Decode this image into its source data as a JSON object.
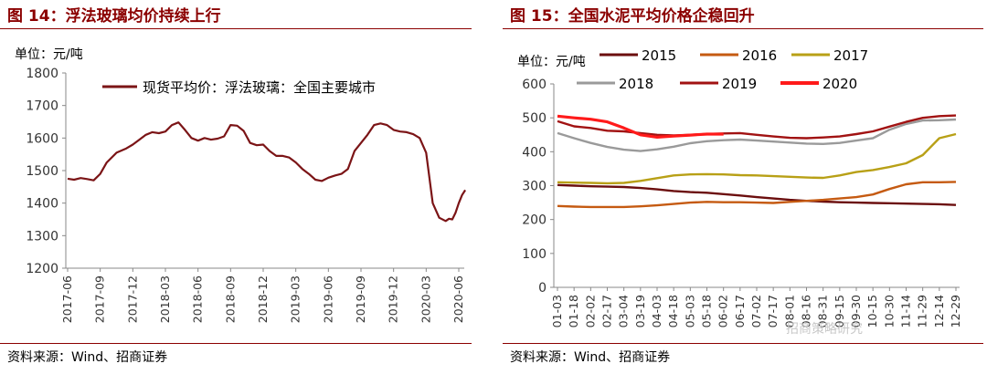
{
  "charts": {
    "left": {
      "title": "图 14：浮法玻璃均价持续上行",
      "unit": "单位：元/吨",
      "source": "资料来源：Wind、招商证券"
    },
    "right": {
      "title": "图 15：全国水泥平均价格企稳回升",
      "unit": "单位：元/吨",
      "source": "资料来源：Wind、招商证券",
      "watermark": "招商策略研究"
    }
  },
  "chart_data": [
    {
      "type": "line",
      "title": "图 14：浮法玻璃均价持续上行",
      "ylabel": "单位：元/吨",
      "ylim": [
        1200,
        1800
      ],
      "yticks": [
        1200,
        1300,
        1400,
        1500,
        1600,
        1700,
        1800
      ],
      "grid": false,
      "legend": "top-right",
      "xticks": [
        "2017-06",
        "2017-09",
        "2017-12",
        "2018-03",
        "2018-06",
        "2018-09",
        "2018-12",
        "2019-03",
        "2019-06",
        "2019-09",
        "2019-12",
        "2020-03",
        "2020-06"
      ],
      "color": "#7b1416",
      "series": [
        {
          "name": "现货平均价：浮法玻璃：全国主要城市",
          "x": [
            0,
            0.2,
            0.4,
            0.6,
            0.8,
            1,
            1.2,
            1.5,
            1.8,
            2,
            2.2,
            2.4,
            2.6,
            2.8,
            3,
            3.2,
            3.4,
            3.6,
            3.8,
            4,
            4.2,
            4.4,
            4.6,
            4.8,
            5,
            5.2,
            5.4,
            5.6,
            5.8,
            6,
            6.2,
            6.4,
            6.6,
            6.8,
            7,
            7.2,
            7.4,
            7.6,
            7.8,
            8,
            8.2,
            8.4,
            8.6,
            8.8,
            9,
            9.2,
            9.4,
            9.6,
            9.8,
            10,
            10.2,
            10.4,
            10.6,
            10.8,
            11,
            11.2,
            11.4,
            11.6,
            11.7,
            11.8,
            11.9,
            12,
            12.1,
            12.2
          ],
          "values": [
            1475,
            1472,
            1477,
            1474,
            1470,
            1490,
            1525,
            1555,
            1568,
            1580,
            1595,
            1610,
            1618,
            1615,
            1620,
            1640,
            1648,
            1625,
            1600,
            1592,
            1600,
            1595,
            1598,
            1605,
            1640,
            1638,
            1622,
            1585,
            1578,
            1580,
            1560,
            1545,
            1545,
            1540,
            1525,
            1505,
            1490,
            1472,
            1468,
            1478,
            1485,
            1490,
            1505,
            1560,
            1585,
            1610,
            1640,
            1645,
            1640,
            1625,
            1620,
            1618,
            1612,
            1600,
            1555,
            1400,
            1355,
            1345,
            1352,
            1350,
            1370,
            1400,
            1425,
            1440
          ]
        }
      ]
    },
    {
      "type": "line",
      "title": "图 15：全国水泥平均价格企稳回升",
      "ylabel": "单位：元/吨",
      "ylim": [
        0,
        600
      ],
      "yticks": [
        0,
        100,
        200,
        300,
        400,
        500,
        600
      ],
      "grid": false,
      "legend": "top",
      "xticks": [
        "01-03",
        "01-18",
        "02-02",
        "02-17",
        "03-04",
        "03-19",
        "04-03",
        "04-18",
        "05-03",
        "05-18",
        "06-02",
        "06-17",
        "07-02",
        "07-17",
        "08-01",
        "08-16",
        "08-31",
        "09-15",
        "09-30",
        "10-15",
        "10-30",
        "11-14",
        "11-29",
        "12-14",
        "12-29"
      ],
      "series": [
        {
          "name": "2015",
          "color": "#6b0e0e",
          "values": [
            302,
            300,
            298,
            297,
            296,
            293,
            289,
            284,
            281,
            279,
            275,
            271,
            266,
            262,
            258,
            255,
            253,
            251,
            250,
            249,
            248,
            247,
            246,
            245,
            243
          ]
        },
        {
          "name": "2016",
          "color": "#c55a11",
          "values": [
            240,
            238,
            237,
            237,
            237,
            239,
            242,
            246,
            250,
            252,
            251,
            251,
            250,
            249,
            252,
            255,
            258,
            262,
            266,
            274,
            290,
            304,
            310,
            310,
            311
          ]
        },
        {
          "name": "2017",
          "color": "#b8a016",
          "values": [
            310,
            309,
            308,
            307,
            308,
            314,
            322,
            330,
            333,
            334,
            333,
            331,
            330,
            328,
            326,
            324,
            323,
            330,
            340,
            346,
            355,
            366,
            390,
            440,
            452
          ]
        },
        {
          "name": "2018",
          "color": "#9a9a9a",
          "values": [
            455,
            440,
            426,
            414,
            406,
            402,
            407,
            415,
            425,
            431,
            434,
            436,
            433,
            430,
            427,
            424,
            423,
            426,
            433,
            440,
            465,
            482,
            492,
            493,
            495
          ]
        },
        {
          "name": "2019",
          "color": "#a11212",
          "values": [
            490,
            475,
            470,
            462,
            460,
            455,
            450,
            448,
            450,
            452,
            454,
            455,
            450,
            445,
            441,
            440,
            442,
            445,
            452,
            460,
            474,
            488,
            500,
            505,
            507
          ]
        },
        {
          "name": "2020",
          "color": "#ff1a1a",
          "values": [
            505,
            500,
            496,
            488,
            470,
            450,
            443,
            446,
            449,
            452,
            452
          ]
        }
      ]
    }
  ]
}
